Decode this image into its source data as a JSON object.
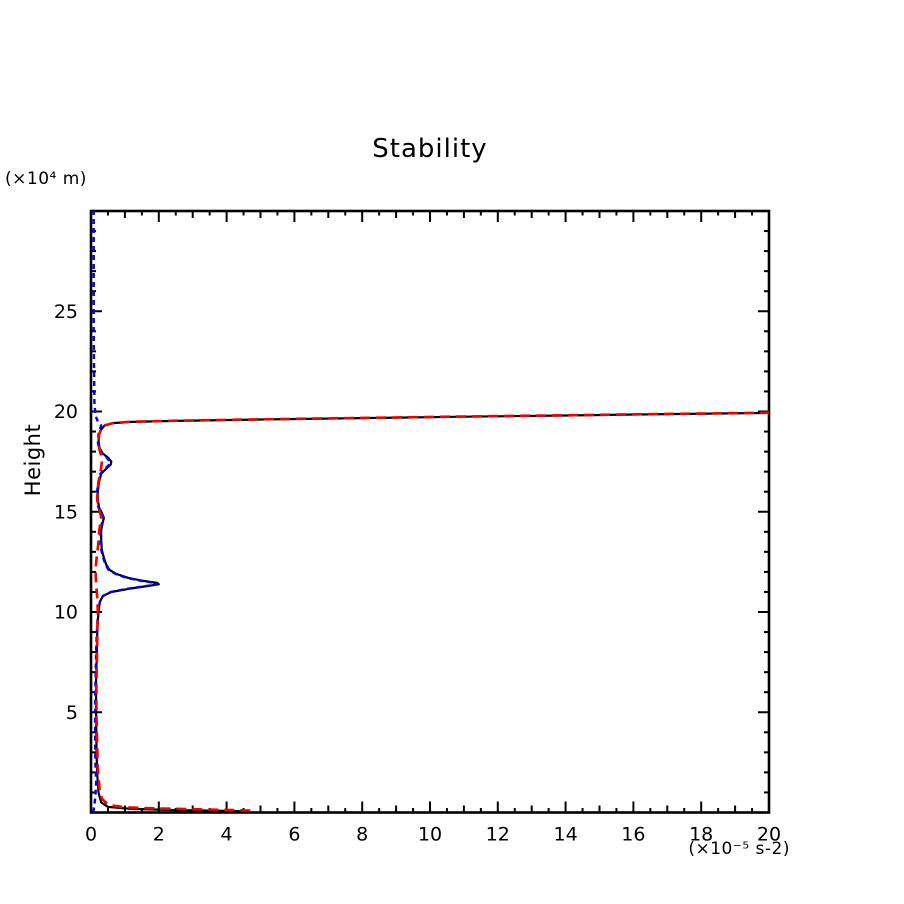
{
  "chart_data": {
    "type": "line",
    "title": "Stability",
    "y_axis_title": "Height",
    "y_unit_label": "(×10⁴ m)",
    "x_unit_label": "(×10⁻⁵ s-2)",
    "xlabel": "",
    "ylabel": "Height",
    "xlim": [
      0,
      20
    ],
    "ylim": [
      0,
      30
    ],
    "grid": false,
    "legend": "none",
    "frame_color": "#000000",
    "x_ticks": {
      "major_step": 2,
      "mid_step": 1,
      "minor_step": 0.5,
      "labels": [
        {
          "v": 0,
          "label": "0"
        },
        {
          "v": 2,
          "label": "2"
        },
        {
          "v": 4,
          "label": "4"
        },
        {
          "v": 6,
          "label": "6"
        },
        {
          "v": 8,
          "label": "8"
        },
        {
          "v": 10,
          "label": "10"
        },
        {
          "v": 12,
          "label": "12"
        },
        {
          "v": 14,
          "label": "14"
        },
        {
          "v": 16,
          "label": "16"
        },
        {
          "v": 18,
          "label": "18"
        },
        {
          "v": 20,
          "label": "20"
        }
      ]
    },
    "y_ticks": {
      "major_step": 5,
      "minor_step": 1,
      "labels": [
        {
          "v": 5,
          "label": "5"
        },
        {
          "v": 10,
          "label": "10"
        },
        {
          "v": 15,
          "label": "15"
        },
        {
          "v": 20,
          "label": "20"
        },
        {
          "v": 25,
          "label": "25"
        }
      ]
    },
    "series": [
      {
        "name": "stability-total-solid",
        "color": "#000000",
        "style": "solid",
        "width": 2.2,
        "points": [
          [
            4.6,
            0.05
          ],
          [
            4.0,
            0.08
          ],
          [
            2.5,
            0.12
          ],
          [
            1.2,
            0.18
          ],
          [
            0.5,
            0.28
          ],
          [
            0.3,
            0.5
          ],
          [
            0.22,
            1.0
          ],
          [
            0.18,
            2.0
          ],
          [
            0.16,
            3.5
          ],
          [
            0.15,
            5.0
          ],
          [
            0.15,
            6.5
          ],
          [
            0.17,
            8.0
          ],
          [
            0.19,
            9.2
          ],
          [
            0.22,
            10.0
          ],
          [
            0.26,
            10.5
          ],
          [
            0.35,
            10.8
          ],
          [
            0.6,
            11.0
          ],
          [
            1.1,
            11.15
          ],
          [
            1.7,
            11.3
          ],
          [
            2.0,
            11.38
          ],
          [
            1.95,
            11.45
          ],
          [
            1.55,
            11.55
          ],
          [
            1.1,
            11.7
          ],
          [
            0.75,
            11.9
          ],
          [
            0.55,
            12.1
          ],
          [
            0.45,
            12.35
          ],
          [
            0.38,
            12.7
          ],
          [
            0.32,
            13.1
          ],
          [
            0.3,
            13.6
          ],
          [
            0.3,
            14.1
          ],
          [
            0.35,
            14.5
          ],
          [
            0.38,
            14.7
          ],
          [
            0.32,
            14.95
          ],
          [
            0.24,
            15.2
          ],
          [
            0.2,
            15.6
          ],
          [
            0.2,
            16.0
          ],
          [
            0.24,
            16.5
          ],
          [
            0.3,
            16.9
          ],
          [
            0.45,
            17.15
          ],
          [
            0.58,
            17.35
          ],
          [
            0.6,
            17.5
          ],
          [
            0.5,
            17.7
          ],
          [
            0.35,
            17.9
          ],
          [
            0.26,
            18.15
          ],
          [
            0.22,
            18.5
          ],
          [
            0.24,
            18.85
          ],
          [
            0.3,
            19.1
          ],
          [
            0.4,
            19.3
          ],
          [
            0.65,
            19.42
          ],
          [
            1.2,
            19.48
          ],
          [
            2.5,
            19.53
          ],
          [
            5.0,
            19.6
          ],
          [
            8.0,
            19.67
          ],
          [
            11.0,
            19.74
          ],
          [
            14.0,
            19.8
          ],
          [
            17.0,
            19.87
          ],
          [
            20.0,
            19.93
          ]
        ]
      },
      {
        "name": "stability-blue-dashed",
        "color": "#0000ee",
        "style": "dashed",
        "dash": "5 4",
        "width": 2.4,
        "points": [
          [
            0.07,
            0.0
          ],
          [
            0.09,
            0.3
          ],
          [
            0.13,
            0.8
          ],
          [
            0.15,
            1.5
          ],
          [
            0.13,
            2.5
          ],
          [
            0.12,
            4.0
          ],
          [
            0.12,
            5.5
          ],
          [
            0.14,
            7.0
          ],
          [
            0.16,
            8.5
          ],
          [
            0.19,
            9.5
          ],
          [
            0.22,
            10.1
          ],
          [
            0.26,
            10.5
          ],
          [
            0.35,
            10.8
          ],
          [
            0.58,
            11.0
          ],
          [
            1.05,
            11.15
          ],
          [
            1.65,
            11.3
          ],
          [
            1.95,
            11.38
          ],
          [
            1.9,
            11.45
          ],
          [
            1.5,
            11.55
          ],
          [
            1.05,
            11.7
          ],
          [
            0.72,
            11.9
          ],
          [
            0.52,
            12.1
          ],
          [
            0.43,
            12.35
          ],
          [
            0.36,
            12.7
          ],
          [
            0.3,
            13.1
          ],
          [
            0.28,
            13.6
          ],
          [
            0.28,
            14.1
          ],
          [
            0.33,
            14.5
          ],
          [
            0.36,
            14.7
          ],
          [
            0.3,
            14.95
          ],
          [
            0.22,
            15.2
          ],
          [
            0.18,
            15.6
          ],
          [
            0.18,
            16.0
          ],
          [
            0.22,
            16.5
          ],
          [
            0.28,
            16.9
          ],
          [
            0.42,
            17.15
          ],
          [
            0.54,
            17.35
          ],
          [
            0.56,
            17.5
          ],
          [
            0.46,
            17.7
          ],
          [
            0.32,
            17.9
          ],
          [
            0.24,
            18.15
          ],
          [
            0.2,
            18.5
          ],
          [
            0.22,
            18.85
          ],
          [
            0.26,
            19.1
          ],
          [
            0.3,
            19.3
          ],
          [
            0.2,
            19.5
          ],
          [
            0.13,
            19.8
          ],
          [
            0.1,
            20.5
          ],
          [
            0.09,
            22.0
          ],
          [
            0.08,
            24.0
          ],
          [
            0.08,
            27.0
          ],
          [
            0.08,
            30.0
          ]
        ]
      },
      {
        "name": "stability-red-dashed",
        "color": "#ee0000",
        "style": "dashed",
        "dash": "10 6",
        "width": 2.6,
        "points": [
          [
            4.7,
            0.1
          ],
          [
            4.2,
            0.12
          ],
          [
            3.2,
            0.16
          ],
          [
            2.0,
            0.2
          ],
          [
            1.0,
            0.26
          ],
          [
            0.5,
            0.38
          ],
          [
            0.32,
            0.7
          ],
          [
            0.25,
            1.2
          ],
          [
            0.2,
            2.2
          ],
          [
            0.18,
            3.5
          ],
          [
            0.16,
            5.0
          ],
          [
            0.16,
            6.5
          ],
          [
            0.18,
            8.0
          ],
          [
            0.19,
            9.2
          ],
          [
            0.2,
            10.0
          ],
          [
            0.19,
            10.6
          ],
          [
            0.17,
            11.0
          ],
          [
            0.15,
            11.4
          ],
          [
            0.14,
            11.8
          ],
          [
            0.14,
            12.2
          ],
          [
            0.16,
            12.6
          ],
          [
            0.19,
            13.0
          ],
          [
            0.22,
            13.5
          ],
          [
            0.24,
            14.0
          ],
          [
            0.28,
            14.5
          ],
          [
            0.3,
            14.7
          ],
          [
            0.27,
            14.95
          ],
          [
            0.22,
            15.2
          ],
          [
            0.19,
            15.6
          ],
          [
            0.19,
            16.0
          ],
          [
            0.22,
            16.5
          ],
          [
            0.27,
            16.9
          ],
          [
            0.3,
            17.2
          ],
          [
            0.32,
            17.5
          ],
          [
            0.3,
            17.8
          ],
          [
            0.25,
            18.1
          ],
          [
            0.22,
            18.5
          ],
          [
            0.24,
            18.85
          ],
          [
            0.29,
            19.1
          ],
          [
            0.39,
            19.3
          ],
          [
            0.65,
            19.42
          ],
          [
            1.2,
            19.49
          ],
          [
            2.5,
            19.54
          ],
          [
            5.0,
            19.61
          ],
          [
            8.0,
            19.68
          ],
          [
            11.0,
            19.75
          ],
          [
            14.0,
            19.81
          ],
          [
            17.0,
            19.88
          ],
          [
            20.0,
            19.94
          ]
        ]
      }
    ]
  }
}
